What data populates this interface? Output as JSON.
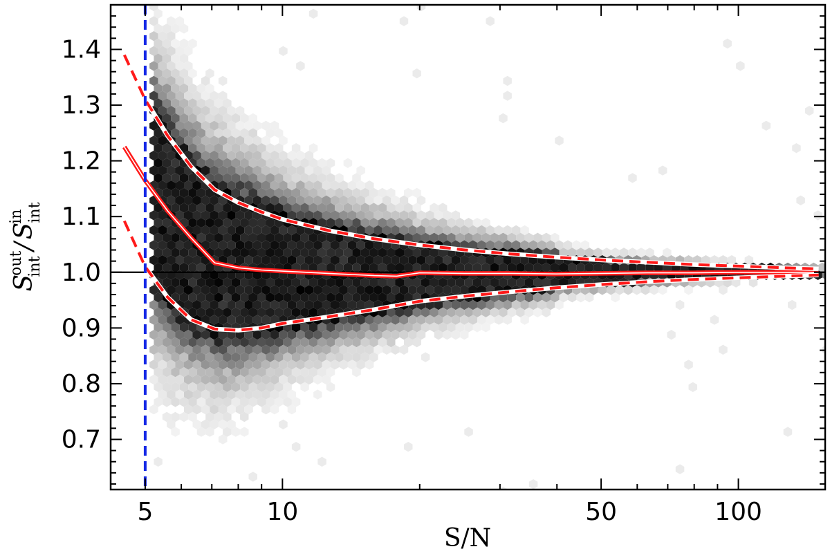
{
  "chart_data": {
    "type": "scatter",
    "subtype": "hexbin-density-with-percentile-curves",
    "xscale": "log",
    "xlim": [
      4.2,
      155
    ],
    "ylim": [
      0.61,
      1.48
    ],
    "xticks": [
      5,
      10,
      50,
      100
    ],
    "xtick_labels": [
      "5",
      "10",
      "50",
      "100"
    ],
    "yticks": [
      0.7,
      0.8,
      0.9,
      1.0,
      1.1,
      1.2,
      1.3,
      1.4
    ],
    "ytick_labels": [
      "0.7",
      "0.8",
      "0.9",
      "1.0",
      "1.1",
      "1.2",
      "1.3",
      "1.4"
    ],
    "xlabel": "S/N",
    "ylabel": {
      "numerator": "S",
      "numerator_sup": "out",
      "numerator_sub": "int",
      "separator": "/",
      "denominator": "S",
      "denominator_sup": "in",
      "denominator_sub": "int"
    },
    "grid": false,
    "colors": {
      "density": "#000000",
      "median_line": "#ff1a1a",
      "percentile_line": "#ff1a1a",
      "threshold_line": "#1428e6",
      "reference_line": "#000000",
      "highlight": "#ffffff"
    },
    "reference_line": {
      "y": 1.0
    },
    "threshold_line": {
      "x": 5
    },
    "series": [
      {
        "role": "median",
        "style": "solid",
        "x": [
          4.5,
          5.0,
          5.6,
          6.3,
          7.1,
          8.0,
          9.0,
          10.0,
          12.6,
          15.9,
          17.8,
          20.0,
          25.1,
          31.6,
          39.8,
          50.1,
          63.1,
          79.4,
          100,
          126,
          150
        ],
        "y": [
          1.225,
          1.165,
          1.11,
          1.062,
          1.017,
          1.008,
          1.004,
          1.002,
          0.998,
          0.994,
          0.993,
          0.999,
          0.998,
          0.998,
          0.997,
          0.998,
          0.999,
          0.999,
          1.0,
          1.0,
          1.0
        ]
      },
      {
        "role": "upper-bound",
        "style": "dashed",
        "x": [
          4.5,
          5.0,
          5.6,
          6.3,
          7.1,
          8.0,
          9.0,
          10.0,
          12.6,
          15.9,
          20.0,
          25.1,
          31.6,
          39.8,
          50.1,
          63.1,
          79.4,
          100,
          126,
          150
        ],
        "y": [
          1.39,
          1.31,
          1.245,
          1.19,
          1.148,
          1.125,
          1.108,
          1.095,
          1.075,
          1.06,
          1.049,
          1.04,
          1.033,
          1.027,
          1.022,
          1.018,
          1.014,
          1.011,
          1.008,
          1.006
        ]
      },
      {
        "role": "lower-bound",
        "style": "dashed",
        "x": [
          4.5,
          5.0,
          5.6,
          6.3,
          7.1,
          8.0,
          9.0,
          10.0,
          12.6,
          15.9,
          20.0,
          25.1,
          31.6,
          39.8,
          50.1,
          63.1,
          79.4,
          100,
          126,
          150
        ],
        "y": [
          1.092,
          1.01,
          0.955,
          0.915,
          0.898,
          0.896,
          0.9,
          0.908,
          0.92,
          0.933,
          0.948,
          0.957,
          0.965,
          0.972,
          0.978,
          0.983,
          0.987,
          0.99,
          0.993,
          0.995
        ]
      }
    ]
  }
}
